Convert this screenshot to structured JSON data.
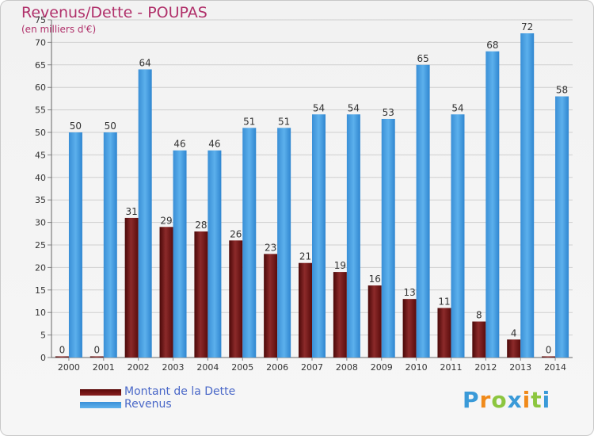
{
  "header": {
    "title": "Revenus/Dette - POUPAS",
    "subtitle": "(en milliers d'€)"
  },
  "legend": {
    "items": [
      {
        "label": "Montant de la Dette",
        "color": "#7a1010"
      },
      {
        "label": "Revenus",
        "color": "#4aa0e0"
      }
    ]
  },
  "logo": {
    "letters": [
      "P",
      "r",
      "o",
      "x",
      "i",
      "t",
      "i"
    ],
    "colors": [
      "#3a9ad8",
      "#f08a1a",
      "#8cc63f",
      "#3a9ad8",
      "#f08a1a",
      "#8cc63f",
      "#3a9ad8"
    ]
  },
  "chart_data": {
    "type": "bar",
    "title": "Revenus/Dette - POUPAS",
    "subtitle": "(en milliers d'€)",
    "categories": [
      "2000",
      "2001",
      "2002",
      "2003",
      "2004",
      "2005",
      "2006",
      "2007",
      "2008",
      "2009",
      "2010",
      "2011",
      "2012",
      "2013",
      "2014"
    ],
    "series": [
      {
        "name": "Montant de la Dette",
        "color": "#7a1010",
        "values": [
          0,
          0,
          31,
          29,
          28,
          26,
          23,
          21,
          19,
          16,
          13,
          11,
          8,
          4,
          0
        ]
      },
      {
        "name": "Revenus",
        "color": "#4aa0e0",
        "values": [
          50,
          50,
          64,
          46,
          46,
          51,
          51,
          54,
          54,
          53,
          65,
          54,
          68,
          72,
          58
        ]
      }
    ],
    "ylim": [
      0,
      75
    ],
    "ytick_step": 5,
    "grid": true,
    "legend_position": "bottom-left"
  }
}
